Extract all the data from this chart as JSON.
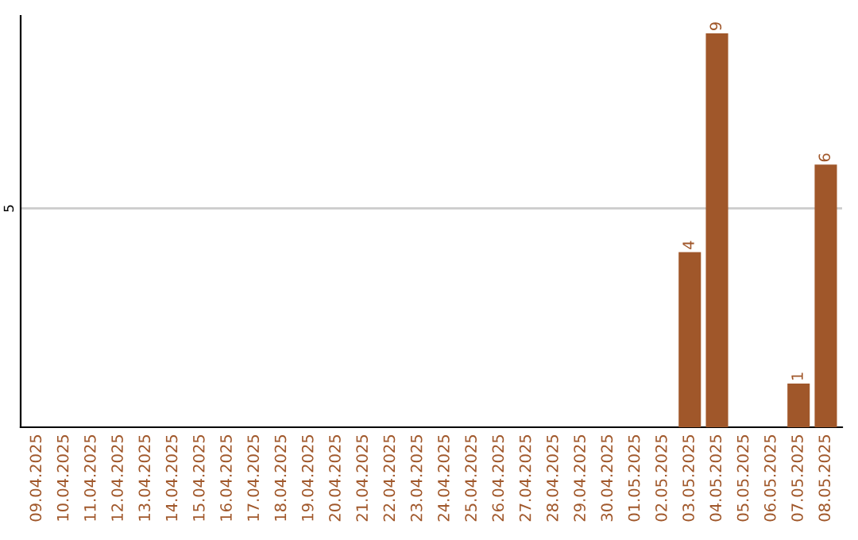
{
  "chart_data": {
    "type": "bar",
    "categories": [
      "09.04.2025",
      "10.04.2025",
      "11.04.2025",
      "12.04.2025",
      "13.04.2025",
      "14.04.2025",
      "15.04.2025",
      "16.04.2025",
      "17.04.2025",
      "18.04.2025",
      "19.04.2025",
      "20.04.2025",
      "21.04.2025",
      "22.04.2025",
      "23.04.2025",
      "24.04.2025",
      "25.04.2025",
      "26.04.2025",
      "27.04.2025",
      "28.04.2025",
      "29.04.2025",
      "30.04.2025",
      "01.05.2025",
      "02.05.2025",
      "03.05.2025",
      "04.05.2025",
      "05.05.2025",
      "06.05.2025",
      "07.05.2025",
      "08.05.2025"
    ],
    "values": [
      null,
      null,
      null,
      null,
      null,
      null,
      null,
      null,
      null,
      null,
      null,
      null,
      null,
      null,
      null,
      null,
      null,
      null,
      null,
      null,
      null,
      null,
      null,
      null,
      4,
      9,
      null,
      null,
      1,
      6
    ],
    "data_labels": true,
    "color": "#a0572a",
    "ylim": [
      0,
      9.4
    ],
    "yticks": [
      5
    ],
    "grid": "y"
  }
}
